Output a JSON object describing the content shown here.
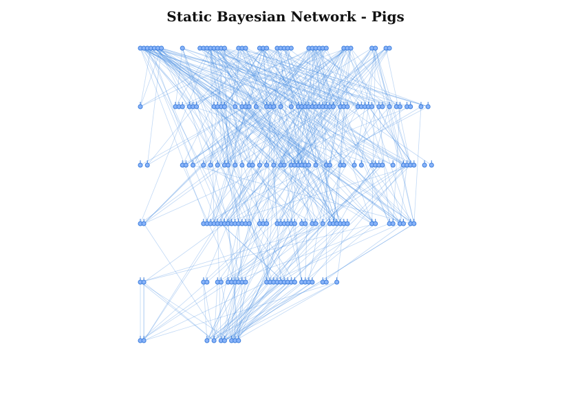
{
  "title": "Static Bayesian Network - Pigs",
  "colors": {
    "node_fill": "#8ab4f8",
    "node_stroke": "#3b7ddd",
    "edge": "#4a90e2",
    "background": "#ffffff"
  },
  "network": {
    "layers": [
      {
        "clusters": [
          [
            0,
            1,
            2,
            3,
            4,
            5,
            6
          ],
          [
            12
          ],
          [
            17,
            18,
            19,
            20,
            21,
            22,
            23,
            24
          ],
          [
            28,
            29,
            30
          ],
          [
            34,
            35,
            36
          ],
          [
            39,
            40,
            41,
            42,
            43
          ],
          [
            48,
            49,
            50,
            51,
            52,
            53
          ],
          [
            58,
            59,
            60
          ],
          [
            66,
            67
          ],
          [
            70,
            71
          ]
        ]
      },
      {
        "clusters": [
          [
            0
          ],
          [
            10,
            11,
            12
          ],
          [
            14,
            15,
            16
          ],
          [
            21,
            22,
            23,
            24
          ],
          [
            27
          ],
          [
            29,
            30,
            31
          ],
          [
            33
          ],
          [
            36,
            37,
            38
          ],
          [
            40
          ],
          [
            43
          ],
          [
            45,
            46,
            47,
            48
          ],
          [
            49,
            50,
            51,
            52,
            53,
            54,
            55
          ],
          [
            57,
            58,
            59
          ],
          [
            62,
            63,
            64,
            65
          ],
          [
            66
          ],
          [
            68,
            69
          ],
          [
            71
          ],
          [
            73,
            74
          ],
          [
            76,
            77
          ],
          [
            80
          ],
          [
            82
          ]
        ]
      },
      {
        "clusters": [
          [
            0
          ],
          [
            2
          ],
          [
            12,
            13
          ],
          [
            15
          ],
          [
            18
          ],
          [
            20
          ],
          [
            22
          ],
          [
            24,
            25
          ],
          [
            27
          ],
          [
            29
          ],
          [
            31,
            32
          ],
          [
            34
          ],
          [
            36
          ],
          [
            38
          ],
          [
            40,
            41
          ],
          [
            43,
            44,
            45,
            46,
            47
          ],
          [
            48
          ],
          [
            50
          ],
          [
            53,
            54
          ],
          [
            57,
            58
          ],
          [
            61
          ],
          [
            63
          ],
          [
            66,
            67,
            68
          ],
          [
            69
          ],
          [
            72
          ],
          [
            75
          ],
          [
            76,
            77
          ],
          [
            78
          ],
          [
            81
          ],
          [
            83
          ]
        ]
      },
      {
        "clusters": [
          [
            0,
            1
          ],
          [
            18,
            19,
            20,
            21,
            22,
            23,
            24,
            25,
            26,
            27,
            28,
            29,
            30,
            31
          ],
          [
            34,
            35,
            36
          ],
          [
            39,
            40,
            41,
            42,
            43,
            44
          ],
          [
            46,
            47
          ],
          [
            49,
            50
          ],
          [
            52
          ],
          [
            54,
            55,
            56,
            57,
            58,
            59
          ],
          [
            66,
            67
          ],
          [
            71,
            72
          ],
          [
            74,
            75
          ],
          [
            77,
            78
          ]
        ]
      },
      {
        "clusters": [
          [
            0,
            1
          ],
          [
            18,
            19
          ],
          [
            22,
            23
          ],
          [
            25,
            26,
            27,
            28,
            29,
            30
          ],
          [
            36,
            37,
            38,
            39
          ],
          [
            40,
            41,
            42
          ],
          [
            43,
            44
          ],
          [
            46,
            47,
            48,
            49
          ],
          [
            52,
            53
          ],
          [
            56
          ]
        ]
      },
      {
        "clusters": [
          [
            0,
            1
          ],
          [
            19
          ],
          [
            21
          ],
          [
            23,
            24
          ],
          [
            26,
            27,
            28
          ]
        ]
      }
    ],
    "edge_count": 420
  }
}
